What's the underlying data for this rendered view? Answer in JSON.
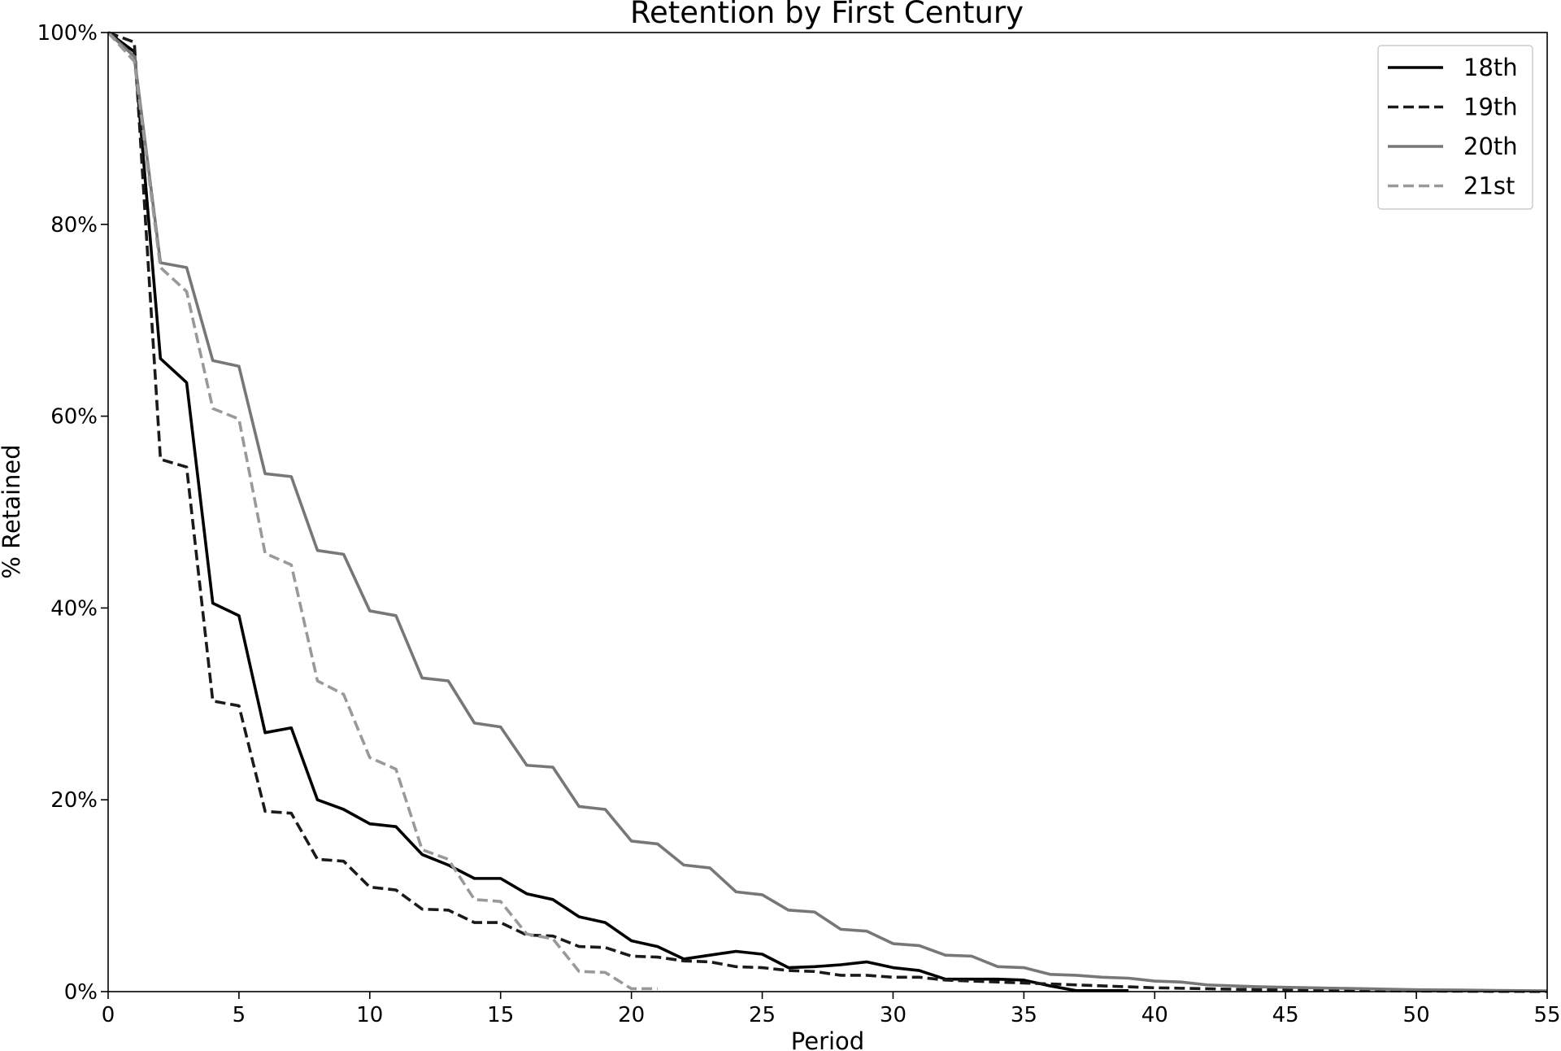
{
  "chart_data": {
    "type": "line",
    "title": "Retention by First Century",
    "xlabel": "Period",
    "ylabel": "% Retained",
    "xlim": [
      0,
      55
    ],
    "ylim": [
      0,
      100
    ],
    "x_ticks": [
      0,
      5,
      10,
      15,
      20,
      25,
      30,
      35,
      40,
      45,
      50,
      55
    ],
    "y_ticks": [
      0,
      20,
      40,
      60,
      80,
      100
    ],
    "y_tick_labels": [
      "0%",
      "20%",
      "40%",
      "60%",
      "80%",
      "100%"
    ],
    "grid": false,
    "legend_position": "top-right",
    "series": [
      {
        "name": "18th",
        "color": "#000000",
        "dash": "solid",
        "x": [
          0,
          1,
          2,
          3,
          4,
          5,
          6,
          7,
          8,
          9,
          10,
          11,
          12,
          13,
          14,
          15,
          16,
          17,
          18,
          19,
          20,
          21,
          22,
          23,
          24,
          25,
          26,
          27,
          28,
          29,
          30,
          31,
          32,
          33,
          34,
          35,
          36,
          37,
          38,
          39
        ],
        "values": [
          100,
          98,
          66,
          63.5,
          40.5,
          39.2,
          27,
          27.5,
          20,
          19,
          17.5,
          17.2,
          14.3,
          13.2,
          11.8,
          11.8,
          10.2,
          9.6,
          7.8,
          7.2,
          5.3,
          4.7,
          3.4,
          3.8,
          4.2,
          3.9,
          2.5,
          2.6,
          2.8,
          3.1,
          2.5,
          2.2,
          1.3,
          1.3,
          1.3,
          1.2,
          0.6,
          0.1,
          0.1,
          0.1
        ]
      },
      {
        "name": "19th",
        "color": "#1a1a1a",
        "dash": "dashed",
        "x": [
          0,
          1,
          2,
          3,
          4,
          5,
          6,
          7,
          8,
          9,
          10,
          11,
          12,
          13,
          14,
          15,
          16,
          17,
          18,
          19,
          20,
          21,
          22,
          23,
          24,
          25,
          26,
          27,
          28,
          29,
          30,
          31,
          32,
          33,
          34,
          35,
          36,
          37,
          38,
          39,
          40,
          41,
          42,
          43,
          44,
          45,
          46,
          47,
          48,
          49,
          50,
          51,
          52,
          53,
          54,
          55
        ],
        "values": [
          100,
          99,
          55.5,
          54.7,
          30.3,
          29.8,
          18.8,
          18.6,
          13.8,
          13.6,
          10.9,
          10.6,
          8.6,
          8.5,
          7.2,
          7.2,
          5.9,
          5.8,
          4.7,
          4.6,
          3.7,
          3.6,
          3.2,
          3.1,
          2.6,
          2.5,
          2.2,
          2.1,
          1.7,
          1.7,
          1.5,
          1.5,
          1.2,
          1.1,
          1.0,
          0.9,
          0.8,
          0.7,
          0.6,
          0.5,
          0.4,
          0.35,
          0.3,
          0.25,
          0.2,
          0.2,
          0.15,
          0.1,
          0.1,
          0.08,
          0.06,
          0.05,
          0.04,
          0.03,
          0.02,
          0.01
        ]
      },
      {
        "name": "20th",
        "color": "#777777",
        "dash": "solid",
        "x": [
          0,
          1,
          2,
          3,
          4,
          5,
          6,
          7,
          8,
          9,
          10,
          11,
          12,
          13,
          14,
          15,
          16,
          17,
          18,
          19,
          20,
          21,
          22,
          23,
          24,
          25,
          26,
          27,
          28,
          29,
          30,
          31,
          32,
          33,
          34,
          35,
          36,
          37,
          38,
          39,
          40,
          41,
          42,
          43,
          44,
          45,
          46,
          47,
          48,
          49,
          50,
          51,
          52,
          53,
          54,
          55
        ],
        "values": [
          100,
          97.5,
          76,
          75.5,
          65.8,
          65.2,
          54,
          53.7,
          46,
          45.6,
          39.7,
          39.2,
          32.7,
          32.4,
          28,
          27.6,
          23.6,
          23.4,
          19.3,
          19,
          15.7,
          15.4,
          13.2,
          12.9,
          10.4,
          10.1,
          8.5,
          8.3,
          6.5,
          6.3,
          5,
          4.8,
          3.8,
          3.7,
          2.6,
          2.5,
          1.8,
          1.7,
          1.5,
          1.4,
          1.1,
          1.0,
          0.7,
          0.6,
          0.5,
          0.45,
          0.4,
          0.35,
          0.3,
          0.25,
          0.2,
          0.18,
          0.15,
          0.12,
          0.1,
          0.08
        ]
      },
      {
        "name": "21st",
        "color": "#999999",
        "dash": "dashed",
        "x": [
          0,
          1,
          2,
          3,
          4,
          5,
          6,
          7,
          8,
          9,
          10,
          11,
          12,
          13,
          14,
          15,
          16,
          17,
          18,
          19,
          20,
          21
        ],
        "values": [
          100,
          97,
          75.5,
          73,
          60.8,
          59.7,
          45.7,
          44.5,
          32.4,
          31,
          24.4,
          23.2,
          14.8,
          13.8,
          9.6,
          9.4,
          6,
          5.5,
          2.1,
          2,
          0.3,
          0.3
        ]
      }
    ]
  }
}
